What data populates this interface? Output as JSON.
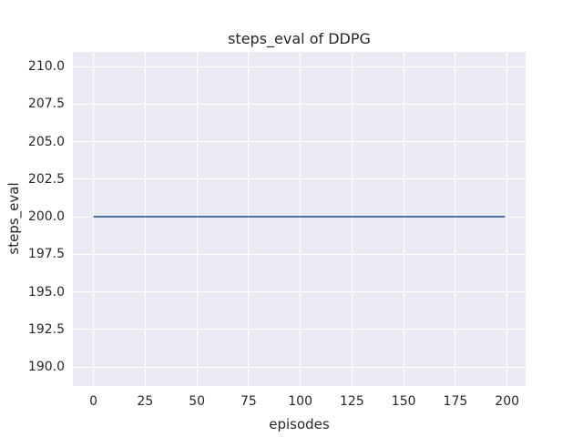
{
  "chart_data": {
    "type": "line",
    "title": "steps_eval of DDPG",
    "xlabel": "episodes",
    "ylabel": "steps_eval",
    "xlim": [
      -9.95,
      208.95
    ],
    "ylim": [
      188.73,
      210.97
    ],
    "grid": true,
    "legend_position": "none",
    "x_ticks": {
      "values": [
        0,
        25,
        50,
        75,
        100,
        125,
        150,
        175,
        200
      ],
      "labels": [
        "0",
        "25",
        "50",
        "75",
        "100",
        "125",
        "150",
        "175",
        "200"
      ]
    },
    "y_ticks": {
      "values": [
        190.0,
        192.5,
        195.0,
        197.5,
        200.0,
        202.5,
        205.0,
        207.5,
        210.0
      ],
      "labels": [
        "190.0",
        "192.5",
        "195.0",
        "197.5",
        "200.0",
        "202.5",
        "205.0",
        "207.5",
        "210.0"
      ]
    },
    "series": [
      {
        "color": "#4c72b0",
        "line_width": 2,
        "x": [
          0,
          199
        ],
        "y": [
          200.0,
          200.0
        ]
      }
    ]
  },
  "style": {
    "figure_bg": "#ffffff",
    "axes_bg": "#eaeaf2",
    "grid_color": "#ffffff",
    "text_color": "#262626"
  }
}
